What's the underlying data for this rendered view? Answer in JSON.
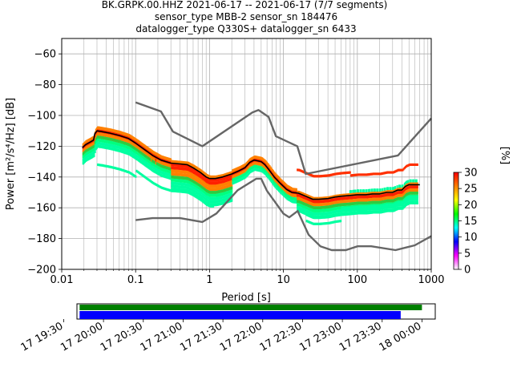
{
  "header": {
    "title_line1": "BK.GRPK.00.HHZ   2021-06-17 -- 2021-06-17  (7/7 segments)",
    "title_line2": "sensor_type MBB-2 sensor_sn 184476",
    "title_line3": "datalogger_type Q330S+ datalogger_sn 6433"
  },
  "chart_data": [
    {
      "type": "heatmap",
      "xlabel": "Period [s]",
      "ylabel": "Power [m²/s⁴/Hz] [dB]",
      "x_scale": "log",
      "xlim": [
        0.01,
        1000
      ],
      "ylim": [
        -200,
        -50
      ],
      "x_ticks": [
        0.01,
        0.1,
        1,
        10,
        100,
        1000
      ],
      "x_tick_labels": [
        "0.01",
        "0.1",
        "1",
        "10",
        "100",
        "1000"
      ],
      "y_ticks": [
        -200,
        -180,
        -160,
        -140,
        -120,
        -100,
        -80,
        -60
      ],
      "y_tick_labels": [
        "−200",
        "−180",
        "−160",
        "−140",
        "−120",
        "−100",
        "−80",
        "−60"
      ],
      "grid": true,
      "colorbar": {
        "label": "[%]",
        "ticks": [
          0,
          5,
          10,
          15,
          20,
          25,
          30
        ],
        "range": [
          0,
          30
        ],
        "colors": [
          "#ffffff",
          "#ff00ff",
          "#0000ff",
          "#00ffff",
          "#00ff00",
          "#ffff00",
          "#ff8000",
          "#ff0000"
        ]
      },
      "series": [
        {
          "name": "high noise model",
          "color": "#666666",
          "x": [
            0.1,
            0.22,
            0.32,
            0.8,
            3.8,
            4.6,
            6.3,
            7.9,
            15.4,
            20,
            354.8,
            10000
          ],
          "y": [
            -91.5,
            -97.4,
            -110.5,
            -120,
            -98,
            -96.5,
            -101,
            -113.5,
            -120,
            -138,
            -126,
            -48.5
          ]
        },
        {
          "name": "low noise model",
          "color": "#666666",
          "x": [
            0.1,
            0.17,
            0.4,
            0.8,
            1.24,
            2.4,
            4.3,
            5,
            6,
            10,
            12,
            15.6,
            21.9,
            31.6,
            45,
            70,
            101,
            154,
            328,
            600,
            10000
          ],
          "y": [
            -168,
            -166.7,
            -166.7,
            -169.2,
            -163.7,
            -148.6,
            -141.1,
            -141.1,
            -149,
            -163.8,
            -166.2,
            -162.1,
            -177.5,
            -185,
            -187.5,
            -187.5,
            -185,
            -185,
            -187.5,
            -184.4,
            -151.5
          ]
        },
        {
          "name": "mode",
          "color": "#000000",
          "x": [
            0.019,
            0.021,
            0.025,
            0.027,
            0.028,
            0.03,
            0.035,
            0.045,
            0.06,
            0.08,
            0.1,
            0.13,
            0.17,
            0.22,
            0.3,
            0.4,
            0.5,
            0.6,
            0.75,
            0.9,
            1,
            1.2,
            1.5,
            2,
            2.5,
            3,
            3.5,
            4,
            4.5,
            5,
            5.6,
            6.3,
            7.5,
            9,
            11,
            13,
            16,
            20,
            25,
            30,
            40,
            50,
            60,
            80,
            100,
            130,
            160,
            200,
            250,
            300,
            350,
            400,
            450,
            500,
            550,
            700
          ],
          "y": [
            -121,
            -119,
            -117,
            -116,
            -112,
            -110,
            -110.5,
            -111.5,
            -113,
            -115,
            -118,
            -122,
            -126,
            -129,
            -131,
            -131.5,
            -132,
            -134,
            -137,
            -140,
            -141,
            -141,
            -140,
            -138,
            -136,
            -134,
            -130.5,
            -129,
            -129.5,
            -130,
            -132,
            -135,
            -140,
            -144,
            -148,
            -150,
            -150.5,
            -152.5,
            -154.5,
            -154.5,
            -154,
            -153,
            -152.5,
            -152,
            -151.5,
            -151.5,
            -151,
            -151,
            -150,
            -150,
            -148.5,
            -148.5,
            -146,
            -145,
            -145,
            -145
          ]
        }
      ]
    },
    {
      "type": "timeline",
      "x_tick_labels": [
        "17 19:30",
        "17 20:00",
        "17 20:30",
        "17 21:00",
        "17 21:30",
        "17 22:00",
        "17 22:30",
        "17 23:00",
        "17 23:30",
        "18 00:00"
      ],
      "xlim": [
        "2021-06-17 19:40",
        "2021-06-18 00:10"
      ],
      "bars": [
        {
          "name": "data coverage",
          "color": "#008000",
          "start": "2021-06-17 19:42",
          "end": "2021-06-18 00:00"
        },
        {
          "name": "psd coverage",
          "color": "#0000ff",
          "start": "2021-06-17 19:42",
          "end": "2021-06-17 23:44"
        }
      ]
    }
  ]
}
